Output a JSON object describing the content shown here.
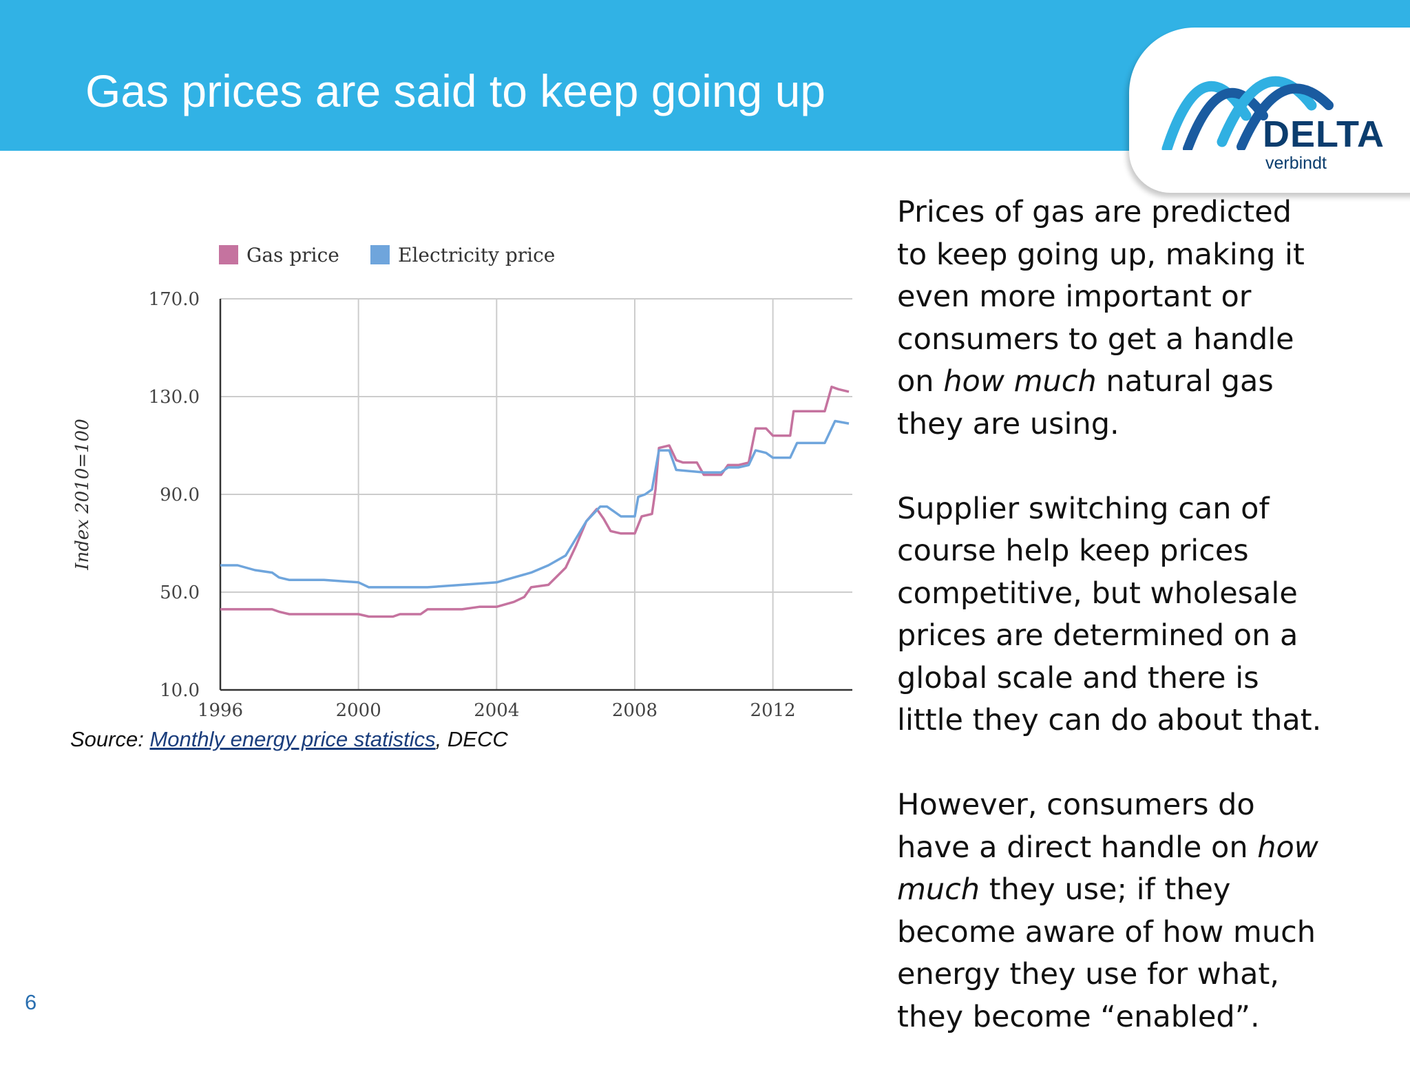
{
  "slide": {
    "title": "Gas prices are said to keep going up",
    "page_number": "6"
  },
  "logo": {
    "name": "DELTA",
    "tagline": "verbindt",
    "colors": {
      "light_arc": "#30b0e2",
      "dark_arc": "#1a5ba0",
      "text": "#0b3d6e"
    }
  },
  "colors": {
    "header": "#31b2e5",
    "gas": "#c5739f",
    "electricity": "#6fa5dc"
  },
  "source": {
    "prefix": "Source: ",
    "link_text": "Monthly energy price statistics",
    "suffix": ", DECC"
  },
  "body": {
    "p1": [
      "Prices of gas are predicted",
      "to keep going up, making it",
      "even more important or",
      "consumers to get a handle",
      "on ",
      "how much",
      " natural gas",
      "they are using."
    ],
    "p2": [
      "Supplier switching can of",
      "course help keep prices",
      "competitive, but wholesale",
      "prices are determined on a",
      "global scale and there is",
      "little they can do about that."
    ],
    "p3": [
      "However, consumers do",
      "have a direct handle on ",
      "how",
      "much",
      " they use; if they",
      "become aware of how much",
      "energy they use for what,",
      "they become “enabled”."
    ]
  },
  "chart_data": {
    "type": "line",
    "title": "",
    "xlabel": "",
    "ylabel": "Index 2010=100",
    "xlim": [
      1996,
      2014.3
    ],
    "ylim": [
      10,
      170
    ],
    "x_ticks": [
      "1996",
      "2000",
      "2004",
      "2008",
      "2012"
    ],
    "y_ticks": [
      "170.0",
      "130.0",
      "90.0",
      "50.0",
      "10.0"
    ],
    "legend_position": "top",
    "grid": true,
    "series": [
      {
        "name": "Gas price",
        "color": "#c5739f",
        "points": [
          [
            1996.0,
            43
          ],
          [
            1997.0,
            43
          ],
          [
            1997.5,
            43
          ],
          [
            1997.7,
            42
          ],
          [
            1998.0,
            41
          ],
          [
            1999.0,
            41
          ],
          [
            2000.0,
            41
          ],
          [
            2000.3,
            40
          ],
          [
            2001.0,
            40
          ],
          [
            2001.2,
            41
          ],
          [
            2001.8,
            41
          ],
          [
            2002.0,
            43
          ],
          [
            2003.0,
            43
          ],
          [
            2003.5,
            44
          ],
          [
            2004.0,
            44
          ],
          [
            2004.5,
            46
          ],
          [
            2004.8,
            48
          ],
          [
            2005.0,
            52
          ],
          [
            2005.5,
            53
          ],
          [
            2006.0,
            60
          ],
          [
            2006.3,
            69
          ],
          [
            2006.6,
            79
          ],
          [
            2006.9,
            84
          ],
          [
            2007.1,
            80
          ],
          [
            2007.3,
            75
          ],
          [
            2007.6,
            74
          ],
          [
            2008.0,
            74
          ],
          [
            2008.2,
            81
          ],
          [
            2008.5,
            82
          ],
          [
            2008.6,
            92
          ],
          [
            2008.7,
            109
          ],
          [
            2009.0,
            110
          ],
          [
            2009.2,
            104
          ],
          [
            2009.4,
            103
          ],
          [
            2009.8,
            103
          ],
          [
            2010.0,
            98
          ],
          [
            2010.5,
            98
          ],
          [
            2010.7,
            102
          ],
          [
            2011.0,
            102
          ],
          [
            2011.3,
            103
          ],
          [
            2011.5,
            117
          ],
          [
            2011.8,
            117
          ],
          [
            2012.0,
            114
          ],
          [
            2012.5,
            114
          ],
          [
            2012.6,
            124
          ],
          [
            2013.0,
            124
          ],
          [
            2013.5,
            124
          ],
          [
            2013.7,
            134
          ],
          [
            2013.9,
            133
          ],
          [
            2014.2,
            132
          ]
        ]
      },
      {
        "name": "Electricity price",
        "color": "#6fa5dc",
        "points": [
          [
            1996.0,
            61
          ],
          [
            1996.5,
            61
          ],
          [
            1997.0,
            59
          ],
          [
            1997.5,
            58
          ],
          [
            1997.7,
            56
          ],
          [
            1998.0,
            55
          ],
          [
            1999.0,
            55
          ],
          [
            2000.0,
            54
          ],
          [
            2000.3,
            52
          ],
          [
            2001.0,
            52
          ],
          [
            2002.0,
            52
          ],
          [
            2003.0,
            53
          ],
          [
            2004.0,
            54
          ],
          [
            2004.5,
            56
          ],
          [
            2005.0,
            58
          ],
          [
            2005.5,
            61
          ],
          [
            2006.0,
            65
          ],
          [
            2006.3,
            72
          ],
          [
            2006.6,
            79
          ],
          [
            2007.0,
            85
          ],
          [
            2007.2,
            85
          ],
          [
            2007.6,
            81
          ],
          [
            2008.0,
            81
          ],
          [
            2008.1,
            89
          ],
          [
            2008.3,
            90
          ],
          [
            2008.5,
            92
          ],
          [
            2008.7,
            108
          ],
          [
            2009.0,
            108
          ],
          [
            2009.2,
            100
          ],
          [
            2010.0,
            99
          ],
          [
            2010.5,
            99
          ],
          [
            2010.7,
            101
          ],
          [
            2011.0,
            101
          ],
          [
            2011.3,
            102
          ],
          [
            2011.5,
            108
          ],
          [
            2011.8,
            107
          ],
          [
            2012.0,
            105
          ],
          [
            2012.5,
            105
          ],
          [
            2012.7,
            111
          ],
          [
            2013.0,
            111
          ],
          [
            2013.5,
            111
          ],
          [
            2013.8,
            120
          ],
          [
            2014.2,
            119
          ]
        ]
      }
    ]
  }
}
